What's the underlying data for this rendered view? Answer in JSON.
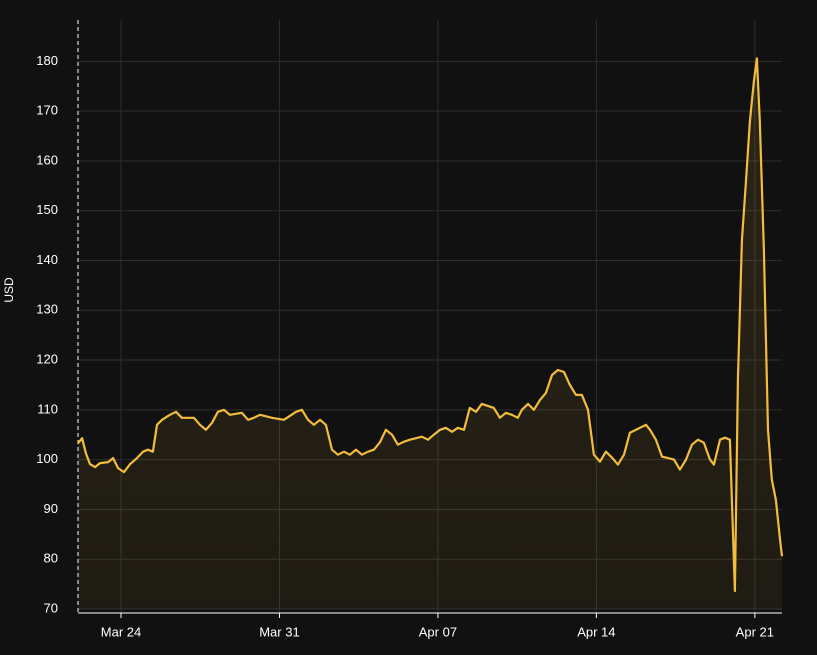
{
  "chart_data": {
    "type": "line",
    "y_label": "USD",
    "xlim": [
      0.1,
      31.2
    ],
    "xticks": [
      {
        "value": 2,
        "label": "Mar 24"
      },
      {
        "value": 9,
        "label": "Mar 31"
      },
      {
        "value": 16,
        "label": "Apr 07"
      },
      {
        "value": 23,
        "label": "Apr 14"
      },
      {
        "value": 30,
        "label": "Apr 21"
      }
    ],
    "ylim": [
      70,
      188.3
    ],
    "yticks": [
      70,
      80,
      90,
      100,
      110,
      120,
      130,
      140,
      150,
      160,
      170,
      180
    ],
    "grid": true,
    "series": [
      {
        "color": "#f2bd3c",
        "x": [
          0.1,
          0.28,
          0.45,
          0.63,
          0.85,
          1.07,
          1.43,
          1.65,
          1.87,
          2.13,
          2.4,
          2.66,
          2.97,
          3.19,
          3.41,
          3.59,
          3.81,
          4.16,
          4.43,
          4.69,
          5.22,
          5.49,
          5.75,
          6.02,
          6.28,
          6.55,
          6.81,
          7.34,
          7.61,
          7.87,
          8.14,
          8.67,
          9.2,
          9.73,
          9.99,
          10.26,
          10.52,
          10.79,
          11.05,
          11.32,
          11.58,
          11.85,
          12.11,
          12.38,
          12.64,
          12.91,
          13.17,
          13.44,
          13.7,
          13.97,
          14.23,
          14.5,
          14.76,
          15.29,
          15.56,
          15.82,
          16.09,
          16.35,
          16.62,
          16.88,
          17.15,
          17.41,
          17.68,
          17.94,
          18.21,
          18.47,
          18.74,
          19.0,
          19.27,
          19.53,
          19.71,
          19.98,
          20.24,
          20.51,
          20.77,
          21.04,
          21.3,
          21.57,
          21.83,
          22.1,
          22.36,
          22.63,
          22.89,
          23.16,
          23.42,
          23.69,
          23.95,
          24.22,
          24.48,
          24.75,
          25.19,
          25.37,
          25.63,
          25.9,
          26.43,
          26.69,
          26.96,
          27.22,
          27.49,
          27.75,
          28.02,
          28.19,
          28.46,
          28.68,
          28.9,
          29.12,
          29.25,
          29.43,
          29.61,
          29.78,
          29.96,
          30.09,
          30.22,
          30.4,
          30.58,
          30.75,
          30.93,
          31.11,
          31.2
        ],
        "values": [
          103.3,
          104.3,
          101.3,
          99.1,
          98.5,
          99.3,
          99.5,
          100.3,
          98.3,
          97.5,
          99.1,
          100.1,
          101.6,
          102.0,
          101.6,
          107.0,
          108.0,
          109.0,
          109.6,
          108.4,
          108.4,
          107.0,
          106.0,
          107.4,
          109.6,
          110.0,
          109.0,
          109.4,
          108.0,
          108.4,
          109.0,
          108.4,
          108.0,
          109.6,
          110.0,
          108.0,
          107.0,
          108.0,
          107.0,
          102.0,
          101.0,
          101.6,
          101.0,
          102.0,
          101.0,
          101.6,
          102.0,
          103.5,
          106.0,
          105.0,
          103.0,
          103.6,
          104.0,
          104.6,
          104.0,
          105.0,
          106.0,
          106.4,
          105.6,
          106.4,
          106.0,
          110.4,
          109.6,
          111.2,
          110.8,
          110.4,
          108.4,
          109.4,
          109.0,
          108.4,
          110.0,
          111.2,
          110.0,
          112.0,
          113.4,
          117.0,
          118.0,
          117.6,
          115.0,
          113.0,
          113.0,
          110.0,
          101.0,
          99.6,
          101.6,
          100.4,
          99.0,
          101.0,
          105.4,
          106.0,
          107.0,
          106.0,
          104.0,
          100.6,
          100.0,
          98.0,
          100.0,
          103.0,
          104.0,
          103.4,
          100.0,
          99.0,
          104.0,
          104.4,
          104.0,
          73.6,
          116.0,
          144.0,
          156.0,
          168.0,
          176.0,
          180.6,
          168.0,
          142.0,
          106.0,
          96.0,
          91.9,
          84.0,
          80.6
        ]
      }
    ]
  }
}
